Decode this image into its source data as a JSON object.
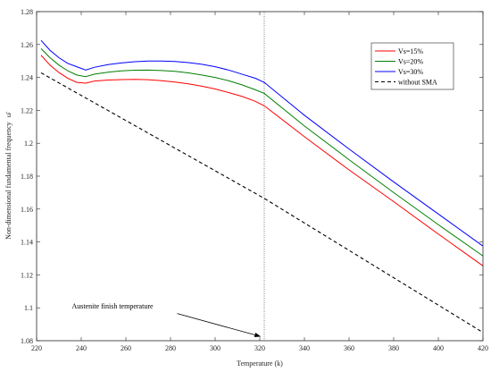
{
  "chart_data": {
    "type": "line",
    "title": "",
    "xlabel": "Temperature (k)",
    "ylabel": "Non-dimensional fundamental frequency",
    "ylabel_symbol": "ω̄",
    "xlim": [
      220,
      420
    ],
    "ylim": [
      1.08,
      1.28
    ],
    "xticks": [
      220,
      240,
      260,
      280,
      300,
      320,
      340,
      360,
      380,
      400,
      420
    ],
    "yticks": [
      1.08,
      1.1,
      1.12,
      1.14,
      1.16,
      1.18,
      1.2,
      1.22,
      1.24,
      1.26,
      1.28
    ],
    "grid": false,
    "legend_position": "top-right",
    "series": [
      {
        "name": "Vs=15%",
        "color": "#ff0000",
        "dash": "solid",
        "points": [
          [
            222,
            1.2535
          ],
          [
            226,
            1.2475
          ],
          [
            230,
            1.243
          ],
          [
            234,
            1.2395
          ],
          [
            238,
            1.237
          ],
          [
            242,
            1.2365
          ],
          [
            246,
            1.2378
          ],
          [
            252,
            1.2384
          ],
          [
            258,
            1.2387
          ],
          [
            264,
            1.2388
          ],
          [
            270,
            1.2386
          ],
          [
            276,
            1.238
          ],
          [
            282,
            1.2372
          ],
          [
            288,
            1.2361
          ],
          [
            294,
            1.2347
          ],
          [
            300,
            1.233
          ],
          [
            306,
            1.2308
          ],
          [
            312,
            1.2285
          ],
          [
            318,
            1.2255
          ],
          [
            322,
            1.2228
          ],
          [
            340,
            1.204
          ],
          [
            360,
            1.1838
          ],
          [
            380,
            1.1645
          ],
          [
            400,
            1.1448
          ],
          [
            420,
            1.1255
          ]
        ]
      },
      {
        "name": "Vs=20%",
        "color": "#008000",
        "dash": "solid",
        "points": [
          [
            222,
            1.2575
          ],
          [
            226,
            1.252
          ],
          [
            230,
            1.2475
          ],
          [
            234,
            1.244
          ],
          [
            238,
            1.2415
          ],
          [
            242,
            1.2405
          ],
          [
            246,
            1.242
          ],
          [
            252,
            1.2432
          ],
          [
            258,
            1.244
          ],
          [
            264,
            1.2444
          ],
          [
            270,
            1.2445
          ],
          [
            276,
            1.2442
          ],
          [
            282,
            1.2437
          ],
          [
            288,
            1.2428
          ],
          [
            294,
            1.2415
          ],
          [
            300,
            1.24
          ],
          [
            306,
            1.238
          ],
          [
            312,
            1.2355
          ],
          [
            318,
            1.2325
          ],
          [
            322,
            1.2303
          ],
          [
            340,
            1.2105
          ],
          [
            360,
            1.19
          ],
          [
            380,
            1.17
          ],
          [
            400,
            1.1505
          ],
          [
            420,
            1.1315
          ]
        ]
      },
      {
        "name": "Vs=30%",
        "color": "#0000ff",
        "dash": "solid",
        "points": [
          [
            222,
            1.2625
          ],
          [
            226,
            1.2565
          ],
          [
            230,
            1.252
          ],
          [
            234,
            1.2485
          ],
          [
            238,
            1.2465
          ],
          [
            242,
            1.2445
          ],
          [
            246,
            1.2462
          ],
          [
            252,
            1.2478
          ],
          [
            258,
            1.2488
          ],
          [
            264,
            1.2496
          ],
          [
            270,
            1.25
          ],
          [
            276,
            1.25
          ],
          [
            282,
            1.2497
          ],
          [
            288,
            1.249
          ],
          [
            294,
            1.248
          ],
          [
            300,
            1.2465
          ],
          [
            306,
            1.2445
          ],
          [
            312,
            1.242
          ],
          [
            318,
            1.2395
          ],
          [
            322,
            1.237
          ],
          [
            340,
            1.217
          ],
          [
            360,
            1.1965
          ],
          [
            380,
            1.1765
          ],
          [
            400,
            1.157
          ],
          [
            420,
            1.1375
          ]
        ]
      },
      {
        "name": "without SMA",
        "color": "#000000",
        "dash": "dashed",
        "points": [
          [
            222,
            1.2428
          ],
          [
            322,
            1.1665
          ],
          [
            420,
            1.085
          ]
        ]
      }
    ],
    "reference_line": {
      "x": 322,
      "style": "dotted",
      "color": "#404040"
    },
    "annotation": {
      "text": "Austenite finish temperature",
      "text_at": [
        254,
        1.0995
      ],
      "arrow_from": [
        283,
        1.0965
      ],
      "arrow_to": [
        320.5,
        1.0825
      ]
    }
  }
}
